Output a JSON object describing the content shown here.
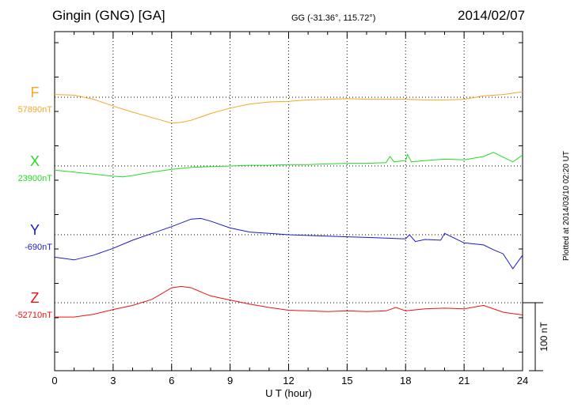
{
  "header": {
    "title": "Gingin (GNG)  [GA]",
    "coords": "GG (-31.36°, 115.72°)",
    "date": "2014/02/07"
  },
  "footer": {
    "plotted": "Plotted at 2014/03/10 02:20 UT"
  },
  "chart_data": {
    "type": "line",
    "title": "Gingin (GNG)  [GA]",
    "xlabel": "U T (hour)",
    "xlim": [
      0,
      24
    ],
    "xticks": [
      "0",
      "3",
      "6",
      "9",
      "12",
      "15",
      "18",
      "21",
      "24"
    ],
    "grid": true,
    "scale_bar": {
      "label": "100 nT",
      "value_nT": 100
    },
    "series": [
      {
        "name": "F",
        "baseline_label": "57890nT",
        "baseline_nT": 57890,
        "color": "#f5a623",
        "x": [
          0,
          1,
          2,
          3,
          4,
          5,
          6,
          6.5,
          7,
          8,
          9,
          10,
          11,
          12,
          13,
          14,
          15,
          16,
          17,
          18,
          19,
          20,
          21,
          22,
          23,
          24
        ],
        "y": [
          4,
          3,
          -3,
          -13,
          -22,
          -30,
          -38,
          -37,
          -34,
          -24,
          -16,
          -10,
          -7,
          -6,
          -4,
          -3,
          -2,
          -3,
          -3,
          -3,
          -4,
          -4,
          -3,
          2,
          4,
          8
        ]
      },
      {
        "name": "X",
        "baseline_label": "23900nT",
        "baseline_nT": 23900,
        "color": "#22dd22",
        "x": [
          0,
          1,
          2,
          3,
          3.5,
          4,
          5,
          6,
          7,
          8,
          9,
          10,
          11,
          12,
          13,
          14,
          15,
          16,
          17,
          17.2,
          17.4,
          18,
          18.1,
          18.3,
          19,
          20,
          21,
          22,
          22.5,
          23,
          23.5,
          24
        ],
        "y": [
          -6,
          -9,
          -12,
          -15,
          -16,
          -14,
          -9,
          -5,
          -2,
          -1,
          0,
          1,
          1,
          2,
          2,
          3,
          4,
          4,
          5,
          14,
          6,
          8,
          17,
          6,
          8,
          10,
          9,
          14,
          20,
          13,
          6,
          16
        ]
      },
      {
        "name": "Y",
        "baseline_label": "-690nT",
        "baseline_nT": -690,
        "color": "#1a1acc",
        "x": [
          0,
          1,
          2,
          3,
          4,
          5,
          6,
          7,
          7.5,
          8,
          9,
          10,
          11,
          12,
          13,
          14,
          15,
          16,
          17,
          18,
          18.2,
          18.5,
          19,
          19.8,
          20,
          21,
          22,
          22.5,
          23,
          23.5,
          24
        ],
        "y": [
          -33,
          -37,
          -30,
          -20,
          -8,
          2,
          12,
          23,
          24,
          20,
          10,
          4,
          2,
          0,
          -1,
          -2,
          -3,
          -4,
          -5,
          -6,
          0,
          -10,
          -7,
          -8,
          2,
          -12,
          -15,
          -22,
          -28,
          -50,
          -30
        ]
      },
      {
        "name": "Z",
        "baseline_label": "-52710nT",
        "baseline_nT": -52710,
        "color": "#ee1111",
        "x": [
          0,
          1,
          2,
          3,
          4,
          5,
          6,
          6.5,
          7,
          8,
          9,
          10,
          11,
          12,
          13,
          14,
          15,
          16,
          17,
          17.5,
          18,
          19,
          20,
          21,
          22,
          23,
          24
        ],
        "y": [
          -21,
          -21,
          -17,
          -10,
          -4,
          5,
          22,
          24,
          22,
          10,
          4,
          -2,
          -7,
          -11,
          -12,
          -13,
          -12,
          -13,
          -12,
          -7,
          -12,
          -9,
          -8,
          -9,
          -4,
          -14,
          -18
        ]
      }
    ]
  }
}
